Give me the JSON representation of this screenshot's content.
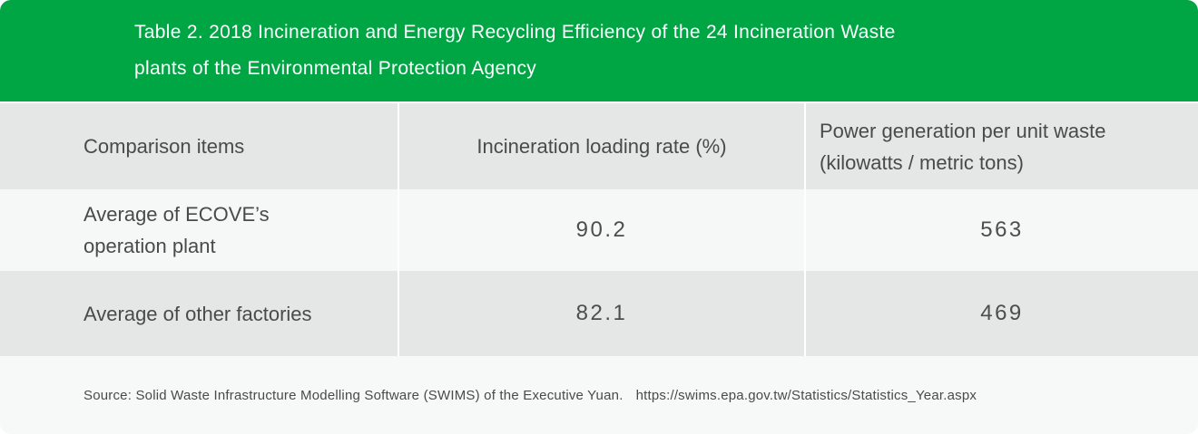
{
  "title": {
    "line1": "Table 2. 2018 Incineration and Energy Recycling Efficiency of the 24 Incineration Waste",
    "line2": "plants of the Environmental Protection Agency"
  },
  "table": {
    "col1_header": "Comparison items",
    "col2_header": "Incineration loading rate (%)",
    "col3_header_line1": "Power generation per unit waste",
    "col3_header_line2": "(kilowatts / metric tons)",
    "rows": [
      {
        "label_line1": "Average of ECOVE’s",
        "label_line2": "operation plant",
        "loading_rate": "90.2",
        "power_generation": "563"
      },
      {
        "label_line1": "Average of other factories",
        "label_line2": "",
        "loading_rate": "82.1",
        "power_generation": "469"
      }
    ]
  },
  "footer": {
    "source_text": "Source: Solid Waste Infrastructure Modelling Software (SWIMS) of the Executive Yuan.",
    "source_url": "https://swims.epa.gov.tw/Statistics/Statistics_Year.aspx"
  },
  "colors": {
    "brand_green": "#00a544",
    "header_row_bg": "#e5e6e6",
    "row_light_bg": "#f6f7f7",
    "row_dark_bg": "#e5e6e6",
    "footer_bg": "#f7f8f8",
    "text_dark": "#4a4a4a",
    "title_text": "#ffffff"
  },
  "chart_data": {
    "type": "table",
    "title": "Table 2. 2018 Incineration and Energy Recycling Efficiency of the 24 Incineration Waste plants of the Environmental Protection Agency",
    "columns": [
      "Comparison items",
      "Incineration loading rate (%)",
      "Power generation per unit waste (kilowatts / metric tons)"
    ],
    "rows": [
      {
        "comparison_item": "Average of ECOVE’s operation plant",
        "incineration_loading_rate_pct": 90.2,
        "power_generation_kw_per_metric_ton": 563
      },
      {
        "comparison_item": "Average of other factories",
        "incineration_loading_rate_pct": 82.1,
        "power_generation_kw_per_metric_ton": 469
      }
    ],
    "source": "Source: Solid Waste Infrastructure Modelling Software (SWIMS) of the Executive Yuan.  https://swims.epa.gov.tw/Statistics/Statistics_Year.aspx"
  }
}
